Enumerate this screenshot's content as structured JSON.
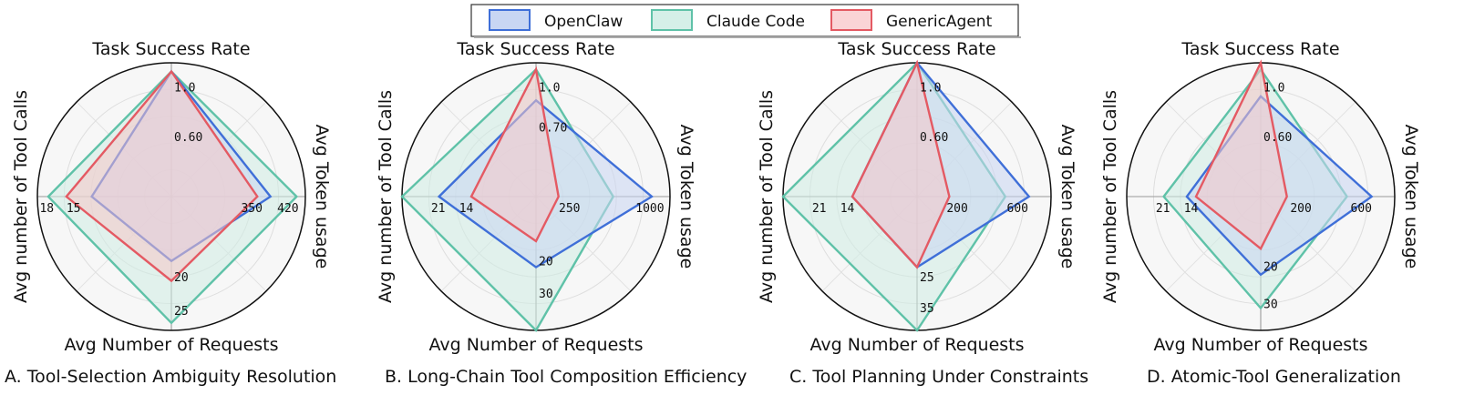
{
  "colors": {
    "OpenClaw": "#3f6fd8",
    "Claude Code": "#5fc2a8",
    "GenericAgent": "#e45a63"
  },
  "legend": [
    "OpenClaw",
    "Claude Code",
    "GenericAgent"
  ],
  "chart_data": [
    {
      "type": "radar",
      "panel": "A",
      "caption": "A. Tool-Selection Ambiguity Resolution",
      "axes": [
        "Task Success Rate",
        "Avg Token usage",
        "Avg Number of Requests",
        "Avg number of Tool Calls"
      ],
      "axis_ticks": [
        [
          "1.0",
          "0.60"
        ],
        [
          "350",
          "420"
        ],
        [
          "20",
          "25"
        ],
        [
          "18",
          "15"
        ]
      ],
      "series": [
        {
          "name": "OpenClaw",
          "values": [
            1.0,
            340,
            13,
            11
          ]
        },
        {
          "name": "Claude Code",
          "values": [
            1.0,
            430,
            25.5,
            17
          ]
        },
        {
          "name": "GenericAgent",
          "values": [
            1.0,
            295,
            17,
            14.5
          ]
        }
      ]
    },
    {
      "type": "radar",
      "panel": "B",
      "caption": "B. Long-Chain Tool Composition Efficiency",
      "axes": [
        "Task Success Rate",
        "Avg Token usage",
        "Avg Number of Requests",
        "Avg number of Tool Calls"
      ],
      "axis_ticks": [
        [
          "1.0",
          "0.70"
        ],
        [
          "250",
          "1000"
        ],
        [
          "20",
          "30"
        ],
        [
          "21",
          "14"
        ]
      ],
      "series": [
        {
          "name": "OpenClaw",
          "values": [
            0.72,
            1080,
            19,
            21
          ]
        },
        {
          "name": "Claude Code",
          "values": [
            0.95,
            720,
            36,
            29
          ]
        },
        {
          "name": "GenericAgent",
          "values": [
            0.95,
            210,
            12,
            14
          ]
        }
      ]
    },
    {
      "type": "radar",
      "panel": "C",
      "caption": "C. Tool Planning Under Constraints",
      "axes": [
        "Task Success Rate",
        "Avg Token usage",
        "Avg Number of Requests",
        "Avg number of Tool Calls"
      ],
      "axis_ticks": [
        [
          "1.0",
          "0.60"
        ],
        [
          "200",
          "600"
        ],
        [
          "25",
          "35"
        ],
        [
          "21",
          "14"
        ]
      ],
      "series": [
        {
          "name": "OpenClaw",
          "values": [
            1.0,
            660,
            19,
            14
          ]
        },
        {
          "name": "Claude Code",
          "values": [
            1.0,
            520,
            36,
            29
          ]
        },
        {
          "name": "GenericAgent",
          "values": [
            1.0,
            190,
            19,
            14
          ]
        }
      ]
    },
    {
      "type": "radar",
      "panel": "D",
      "caption": "D. Atomic-Tool Generalization",
      "axes": [
        "Task Success Rate",
        "Avg Token usage",
        "Avg Number of Requests",
        "Avg number of Tool Calls"
      ],
      "axis_ticks": [
        [
          "1.0",
          "0.60"
        ],
        [
          "200",
          "600"
        ],
        [
          "20",
          "30"
        ],
        [
          "21",
          "14"
        ]
      ],
      "series": [
        {
          "name": "OpenClaw",
          "values": [
            0.75,
            720,
            21,
            16
          ]
        },
        {
          "name": "Claude Code",
          "values": [
            0.95,
            560,
            30,
            21
          ]
        },
        {
          "name": "GenericAgent",
          "values": [
            1.0,
            170,
            14,
            14
          ]
        }
      ]
    }
  ]
}
